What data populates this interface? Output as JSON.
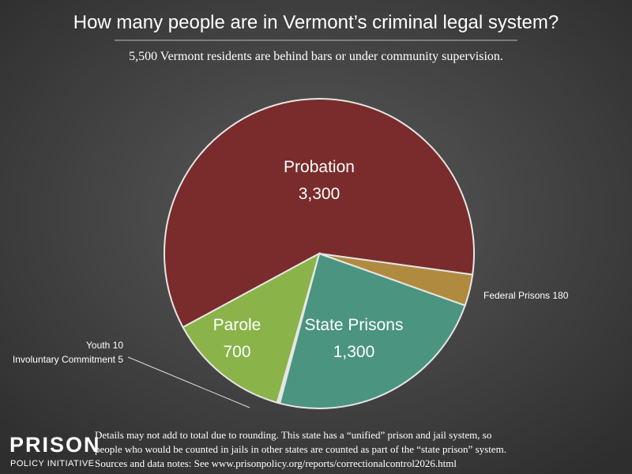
{
  "chart_data": {
    "type": "pie",
    "title": "How many people are in Vermont’s criminal legal system?",
    "subtitle": "5,500 Vermont residents are behind bars or under community supervision.",
    "categories": [
      "Probation",
      "Federal Prisons",
      "State Prisons",
      "Youth",
      "Involuntary Commitment",
      "Parole"
    ],
    "values": [
      3300,
      180,
      1300,
      10,
      5,
      700
    ],
    "value_labels": [
      "3,300",
      "180",
      "1,300",
      "10",
      "5",
      "700"
    ],
    "colors": [
      "#7a2b2b",
      "#b08a3e",
      "#4a9480",
      "#9a9a9a",
      "#bdbdbd",
      "#8ab34a"
    ]
  },
  "notes": [
    "Details may not add to total due to rounding. This state has a “unified” prison and jail system, so",
    "people who would be counted in jails in other states are counted as part of the “state prison” system.",
    "Sources and data notes: See www.prisonpolicy.org/reports/correctionalcontrol2026.html"
  ],
  "logo": [
    "PRISON",
    "POLICY INITIATIVE"
  ]
}
